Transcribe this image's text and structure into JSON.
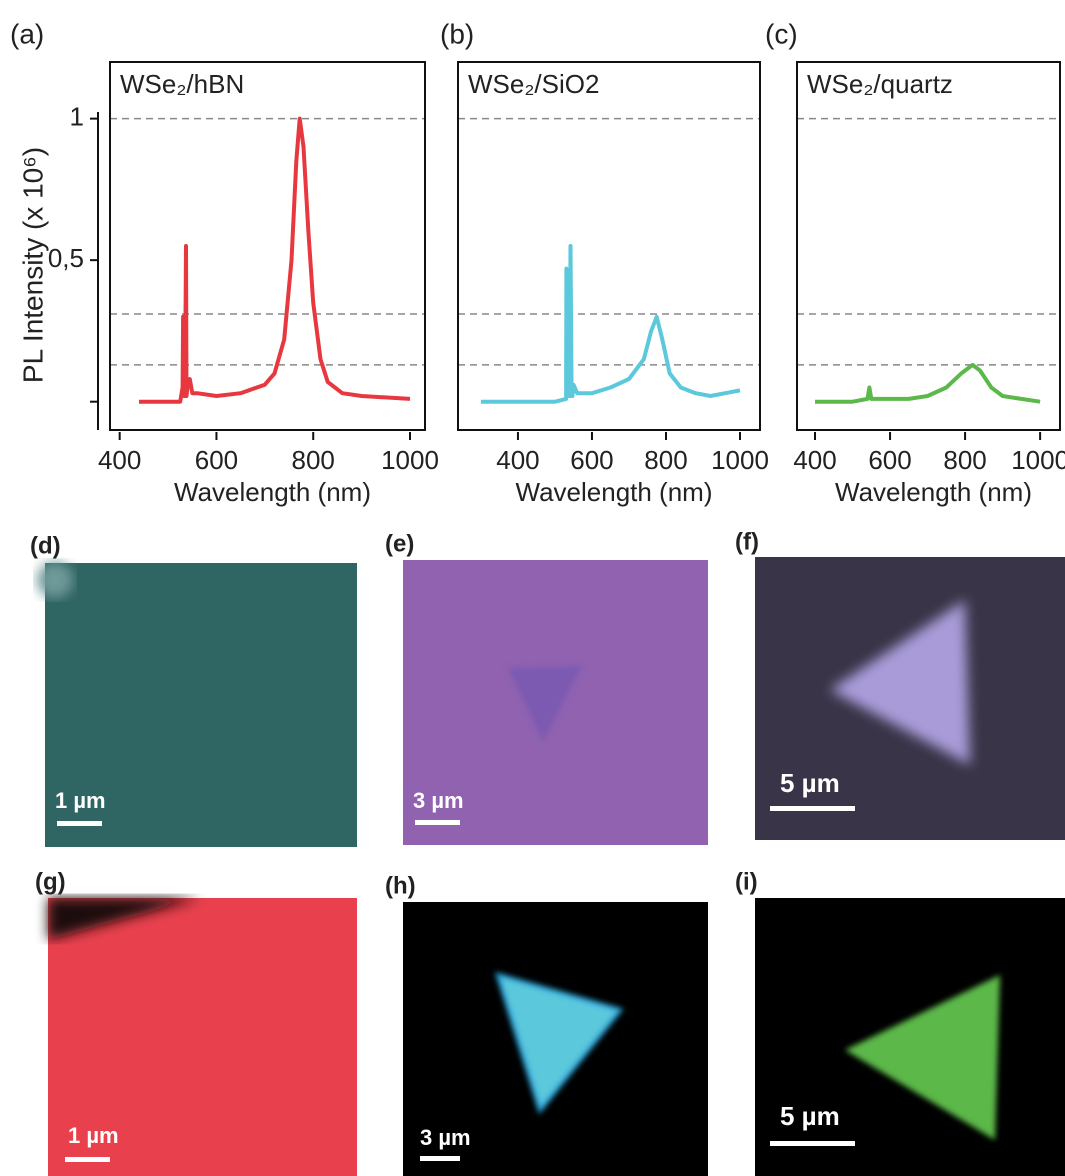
{
  "chart_data": [
    {
      "type": "line",
      "panel": "(a)",
      "title": "WSe₂/hBN",
      "ylabel": "PL Intensity (x 10⁶)",
      "xlabel": "Wavelength (nm)",
      "color": "#e8383f",
      "x": [
        440,
        525,
        530,
        531,
        533,
        535,
        537,
        538,
        540,
        545,
        550,
        555,
        560,
        600,
        650,
        700,
        720,
        740,
        755,
        765,
        772,
        780,
        790,
        800,
        815,
        830,
        860,
        900,
        1000
      ],
      "values": [
        0,
        0,
        0.05,
        0.3,
        0.02,
        0.02,
        0.55,
        0.02,
        0.05,
        0.08,
        0.03,
        0.03,
        0.03,
        0.02,
        0.03,
        0.06,
        0.1,
        0.22,
        0.5,
        0.85,
        1.0,
        0.9,
        0.6,
        0.35,
        0.15,
        0.07,
        0.03,
        0.02,
        0.01
      ],
      "xlim": [
        380,
        1031
      ],
      "xticks": [
        400,
        600,
        800,
        1000
      ],
      "ylim": [
        -0.1,
        1.2
      ],
      "yticks": [
        {
          "value": 0,
          "label": null
        },
        {
          "value": 0.5,
          "label": "0,5"
        },
        1
      ],
      "hlines": [
        1.0,
        0.31,
        0.13
      ]
    },
    {
      "type": "line",
      "panel": "(b)",
      "title": "WSe₂/SiO2",
      "xlabel": "Wavelength (nm)",
      "color": "#5bc8dc",
      "x": [
        300,
        500,
        530,
        531,
        535,
        540,
        542,
        545,
        547,
        550,
        560,
        600,
        650,
        700,
        740,
        760,
        775,
        790,
        810,
        840,
        880,
        920,
        960,
        1000
      ],
      "values": [
        0,
        0,
        0.01,
        0.47,
        0.02,
        0.02,
        0.55,
        0.02,
        0.02,
        0.06,
        0.03,
        0.03,
        0.05,
        0.08,
        0.15,
        0.25,
        0.3,
        0.22,
        0.1,
        0.05,
        0.03,
        0.02,
        0.03,
        0.04
      ],
      "xlim": [
        238,
        1054
      ],
      "xticks": [
        400,
        600,
        800,
        1000
      ],
      "ylim": [
        -0.1,
        1.2
      ],
      "hlines": [
        1.0,
        0.31,
        0.13
      ]
    },
    {
      "type": "line",
      "panel": "(c)",
      "title": "WSe₂/quartz",
      "xlabel": "Wavelength (nm)",
      "color": "#5cb84a",
      "x": [
        400,
        500,
        540,
        545,
        550,
        600,
        650,
        700,
        750,
        790,
        820,
        840,
        870,
        900,
        950,
        1000
      ],
      "values": [
        0,
        0,
        0.01,
        0.05,
        0.01,
        0.01,
        0.01,
        0.02,
        0.05,
        0.1,
        0.13,
        0.11,
        0.05,
        0.02,
        0.01,
        0
      ],
      "xlim": [
        352,
        1053
      ],
      "xticks": [
        400,
        600,
        800,
        1000
      ],
      "ylim": [
        -0.1,
        1.2
      ],
      "hlines": [
        1.0,
        0.31,
        0.13
      ]
    }
  ],
  "images": [
    {
      "label": "(d)",
      "scale_bar": "1 µm"
    },
    {
      "label": "(e)",
      "scale_bar": "3 µm"
    },
    {
      "label": "(f)",
      "scale_bar": "5 µm"
    },
    {
      "label": "(g)",
      "scale_bar": "1 µm"
    },
    {
      "label": "(h)",
      "scale_bar": "3 µm"
    },
    {
      "label": "(i)",
      "scale_bar": "5 µm"
    }
  ]
}
